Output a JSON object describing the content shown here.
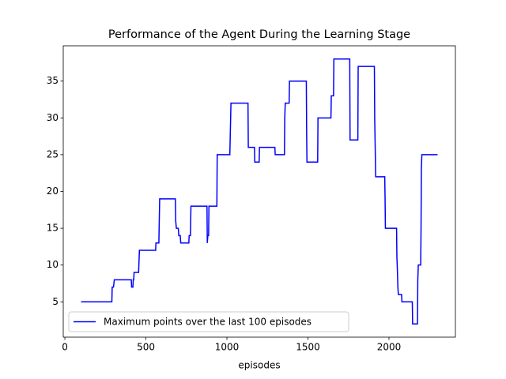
{
  "chart_data": {
    "type": "line",
    "title": "Performance of the Agent During the Learning Stage",
    "x_label": "episodes",
    "x": [
      100,
      290,
      292,
      300,
      305,
      410,
      412,
      420,
      422,
      425,
      427,
      455,
      460,
      560,
      562,
      580,
      585,
      682,
      684,
      688,
      700,
      703,
      712,
      715,
      765,
      767,
      775,
      778,
      877,
      879,
      882,
      887,
      889,
      938,
      940,
      1018,
      1020,
      1025,
      1130,
      1132,
      1170,
      1172,
      1199,
      1201,
      1296,
      1298,
      1355,
      1357,
      1360,
      1384,
      1386,
      1490,
      1492,
      1494,
      1560,
      1562,
      1642,
      1644,
      1658,
      1660,
      1758,
      1760,
      1808,
      1810,
      1910,
      1912,
      1918,
      1974,
      1976,
      1978,
      2047,
      2049,
      2051,
      2055,
      2058,
      2078,
      2080,
      2144,
      2146,
      2176,
      2178,
      2181,
      2196,
      2198,
      2200,
      2203,
      2300
    ],
    "series": [
      {
        "name": "Maximum points over the last 100 episodes",
        "color": "#0000ff",
        "values": [
          5,
          5,
          7,
          7,
          8,
          8,
          7,
          7,
          8,
          8,
          9,
          9,
          12,
          12,
          13,
          13,
          19,
          19,
          16,
          15,
          15,
          14,
          14,
          13,
          13,
          14,
          14,
          18,
          18,
          13,
          14,
          14,
          18,
          18,
          25,
          25,
          27,
          32,
          32,
          26,
          26,
          24,
          24,
          26,
          26,
          25,
          25,
          30,
          32,
          32,
          35,
          35,
          28,
          24,
          24,
          30,
          30,
          33,
          33,
          38,
          38,
          27,
          27,
          37,
          37,
          30,
          22,
          22,
          19,
          15,
          15,
          11,
          10,
          7,
          6,
          6,
          5,
          5,
          2,
          2,
          8,
          10,
          10,
          15,
          23,
          25,
          25
        ]
      }
    ],
    "xlim": [
      -10,
      2410
    ],
    "ylim": [
      0.2,
      39.8
    ],
    "xticks": [
      0,
      500,
      1000,
      1500,
      2000
    ],
    "yticks": [
      5,
      10,
      15,
      20,
      25,
      30,
      35
    ],
    "legend": "lower left"
  }
}
